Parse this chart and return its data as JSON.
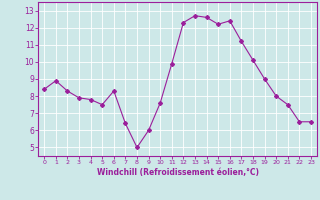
{
  "x": [
    0,
    1,
    2,
    3,
    4,
    5,
    6,
    7,
    8,
    9,
    10,
    11,
    12,
    13,
    14,
    15,
    16,
    17,
    18,
    19,
    20,
    21,
    22,
    23
  ],
  "y": [
    8.4,
    8.9,
    8.3,
    7.9,
    7.8,
    7.5,
    8.3,
    6.4,
    5.0,
    6.0,
    7.6,
    9.9,
    12.3,
    12.7,
    12.6,
    12.2,
    12.4,
    11.2,
    10.1,
    9.0,
    8.0,
    7.5,
    6.5,
    6.5
  ],
  "line_color": "#9b1f9b",
  "marker": "D",
  "marker_size": 2,
  "background_color": "#cde8e8",
  "grid_color": "#ffffff",
  "xlabel": "Windchill (Refroidissement éolien,°C)",
  "xlabel_color": "#9b1f9b",
  "tick_color": "#9b1f9b",
  "ylim": [
    4.5,
    13.5
  ],
  "xlim": [
    -0.5,
    23.5
  ],
  "yticks": [
    5,
    6,
    7,
    8,
    9,
    10,
    11,
    12,
    13
  ],
  "xticks": [
    0,
    1,
    2,
    3,
    4,
    5,
    6,
    7,
    8,
    9,
    10,
    11,
    12,
    13,
    14,
    15,
    16,
    17,
    18,
    19,
    20,
    21,
    22,
    23
  ],
  "spine_color": "#9b1f9b",
  "figsize": [
    3.2,
    2.0
  ],
  "dpi": 100
}
